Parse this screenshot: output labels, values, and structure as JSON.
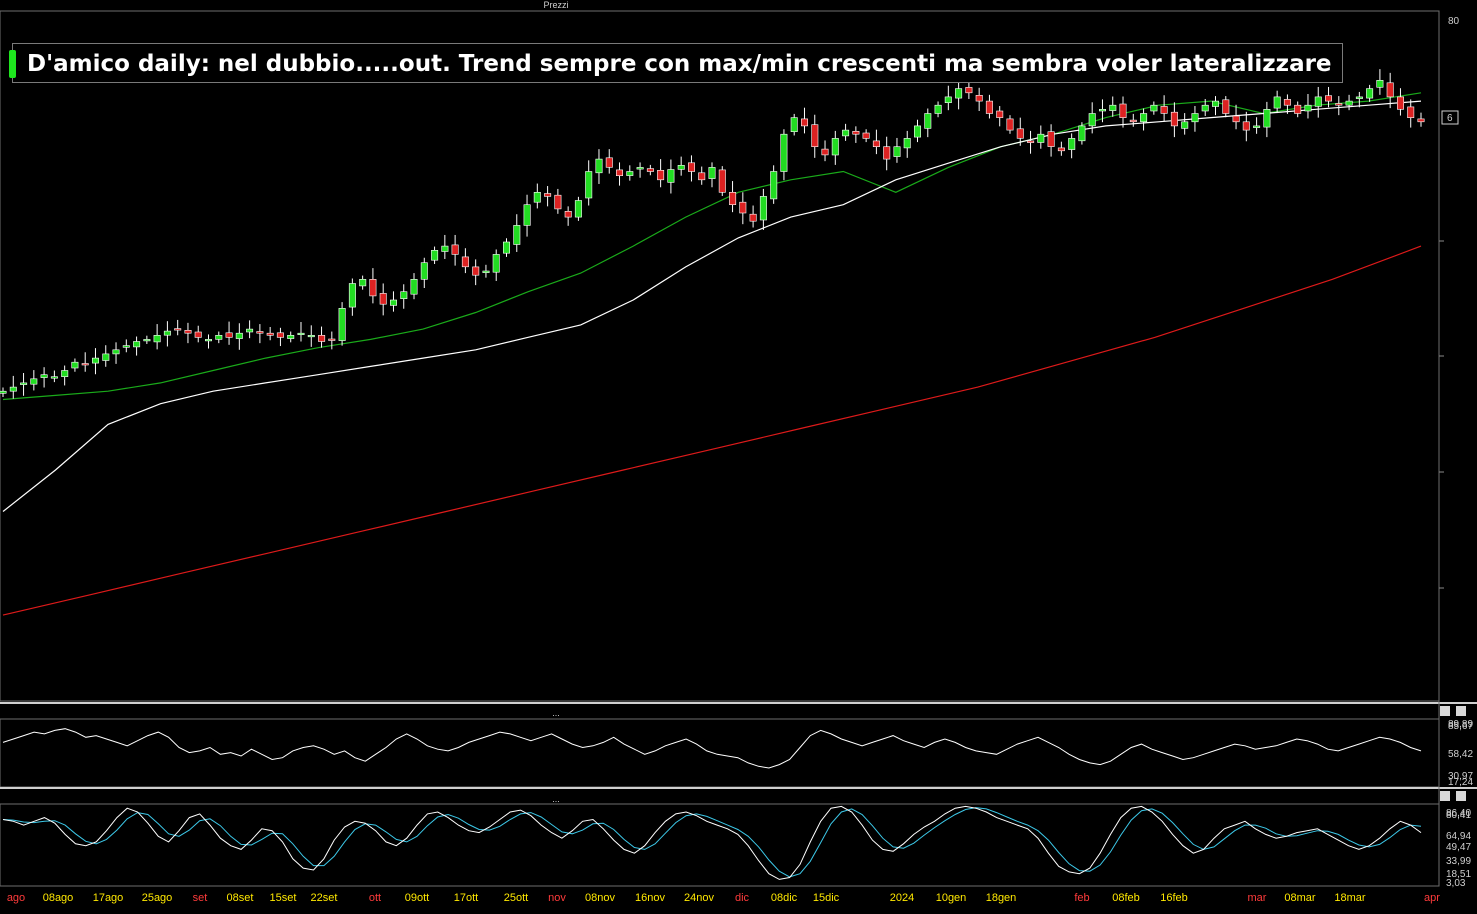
{
  "panels": {
    "price_title": "Prezzi",
    "osc1_title": "...",
    "osc2_title": "..."
  },
  "annotation": {
    "text": "D'amico daily: nel dubbio.....out. Trend sempre con max/min crescenti ma sembra voler lateralizzare"
  },
  "colors": {
    "background": "#000000",
    "up_candle": "#22dd22",
    "down_candle": "#dd2222",
    "ma_fast": "#1aaa1a",
    "ma_mid": "#ffffff",
    "ma_slow": "#dd1a1a",
    "stoch_signal": "#3cc8e8",
    "month_label": "#ff3b3b",
    "date_label": "#ffe800"
  },
  "chart_data": [
    {
      "type": "candlestick",
      "panel": "Prezzi",
      "y_axis_labels": [
        "80",
        "6"
      ],
      "last_value_label": "6",
      "x_tick_labels": [
        {
          "label": "ago",
          "month": true
        },
        {
          "label": "08ago",
          "month": false
        },
        {
          "label": "17ago",
          "month": false
        },
        {
          "label": "25ago",
          "month": false
        },
        {
          "label": "set",
          "month": true
        },
        {
          "label": "08set",
          "month": false
        },
        {
          "label": "15set",
          "month": false
        },
        {
          "label": "22set",
          "month": false
        },
        {
          "label": "ott",
          "month": true
        },
        {
          "label": "09ott",
          "month": false
        },
        {
          "label": "17ott",
          "month": false
        },
        {
          "label": "25ott",
          "month": false
        },
        {
          "label": "nov",
          "month": true
        },
        {
          "label": "08nov",
          "month": false
        },
        {
          "label": "16nov",
          "month": false
        },
        {
          "label": "24nov",
          "month": false
        },
        {
          "label": "dic",
          "month": true
        },
        {
          "label": "08dic",
          "month": false
        },
        {
          "label": "15dic",
          "month": false
        },
        {
          "label": "2024",
          "month": false
        },
        {
          "label": "10gen",
          "month": false
        },
        {
          "label": "18gen",
          "month": false
        },
        {
          "label": "feb",
          "month": true
        },
        {
          "label": "08feb",
          "month": false
        },
        {
          "label": "16feb",
          "month": false
        },
        {
          "label": "mar",
          "month": true
        },
        {
          "label": "08mar",
          "month": false
        },
        {
          "label": "18mar",
          "month": false
        },
        {
          "label": "apr",
          "month": true
        }
      ],
      "series_close": [
        4.78,
        4.8,
        4.82,
        4.84,
        4.86,
        4.85,
        4.88,
        4.92,
        4.91,
        4.94,
        4.96,
        4.98,
        5.0,
        5.02,
        5.03,
        5.05,
        5.07,
        5.08,
        5.06,
        5.04,
        5.03,
        5.05,
        5.04,
        5.06,
        5.08,
        5.06,
        5.05,
        5.04,
        5.05,
        5.06,
        5.05,
        5.02,
        5.03,
        5.18,
        5.3,
        5.32,
        5.24,
        5.2,
        5.22,
        5.26,
        5.32,
        5.4,
        5.46,
        5.48,
        5.44,
        5.38,
        5.34,
        5.36,
        5.44,
        5.5,
        5.58,
        5.68,
        5.74,
        5.72,
        5.66,
        5.62,
        5.7,
        5.84,
        5.9,
        5.86,
        5.82,
        5.84,
        5.86,
        5.84,
        5.8,
        5.85,
        5.87,
        5.84,
        5.8,
        5.86,
        5.74,
        5.68,
        5.64,
        5.6,
        5.72,
        5.84,
        6.02,
        6.1,
        6.06,
        5.96,
        5.92,
        6.0,
        6.04,
        6.02,
        6.0,
        5.96,
        5.9,
        5.96,
        6.0,
        6.06,
        6.12,
        6.16,
        6.2,
        6.24,
        6.22,
        6.18,
        6.12,
        6.1,
        6.04,
        6.0,
        5.98,
        6.02,
        5.96,
        5.94,
        6.0,
        6.06,
        6.12,
        6.14,
        6.16,
        6.1,
        6.08,
        6.12,
        6.16,
        6.12,
        6.06,
        6.08,
        6.12,
        6.16,
        6.18,
        6.12,
        6.08,
        6.04,
        6.06,
        6.14,
        6.2,
        6.16,
        6.12,
        6.16,
        6.2,
        6.18,
        6.16,
        6.18,
        6.2,
        6.24,
        6.28,
        6.2,
        6.14,
        6.1,
        6.08
      ],
      "moving_averages": [
        {
          "color": "ma_fast",
          "values": [
            4.74,
            4.76,
            4.78,
            4.82,
            4.88,
            4.94,
            4.99,
            5.03,
            5.08,
            5.16,
            5.26,
            5.35,
            5.48,
            5.62,
            5.74,
            5.8,
            5.84,
            5.74,
            5.86,
            5.96,
            6.02,
            6.1,
            6.16,
            6.18,
            6.12,
            6.16,
            6.18,
            6.22
          ]
        },
        {
          "color": "ma_mid",
          "values": [
            4.2,
            4.4,
            4.62,
            4.72,
            4.78,
            4.82,
            4.86,
            4.9,
            4.94,
            4.98,
            5.04,
            5.1,
            5.22,
            5.38,
            5.52,
            5.62,
            5.68,
            5.8,
            5.88,
            5.96,
            6.02,
            6.06,
            6.08,
            6.1,
            6.12,
            6.14,
            6.16,
            6.18
          ]
        },
        {
          "color": "ma_slow",
          "values": [
            3.7,
            3.8,
            3.9,
            4.0,
            4.1,
            4.2,
            4.3,
            4.4,
            4.5,
            4.6,
            4.7,
            4.8,
            4.92,
            5.04,
            5.18,
            5.32,
            5.48
          ]
        }
      ]
    },
    {
      "type": "line",
      "panel": "oscillator-1",
      "y_axis_labels": [
        "89,89",
        "85,67",
        "58,42",
        "30,97",
        "17,24"
      ],
      "ylim": [
        17.24,
        89.89
      ],
      "values": [
        66,
        70,
        74,
        78,
        76,
        80,
        82,
        78,
        72,
        74,
        70,
        66,
        62,
        68,
        74,
        78,
        72,
        60,
        54,
        56,
        60,
        52,
        54,
        50,
        58,
        52,
        46,
        48,
        56,
        60,
        62,
        58,
        52,
        56,
        48,
        44,
        52,
        60,
        70,
        76,
        70,
        62,
        58,
        56,
        60,
        66,
        70,
        74,
        78,
        76,
        72,
        68,
        72,
        76,
        70,
        64,
        60,
        62,
        66,
        72,
        64,
        58,
        52,
        56,
        62,
        66,
        70,
        64,
        56,
        52,
        50,
        48,
        42,
        38,
        36,
        40,
        46,
        60,
        74,
        80,
        76,
        70,
        66,
        62,
        66,
        70,
        74,
        68,
        64,
        60,
        66,
        70,
        66,
        60,
        56,
        54,
        52,
        58,
        64,
        68,
        72,
        66,
        60,
        52,
        46,
        42,
        40,
        44,
        52,
        60,
        64,
        58,
        54,
        50,
        46,
        48,
        52,
        56,
        60,
        64,
        62,
        58,
        60,
        62,
        66,
        70,
        68,
        64,
        58,
        56,
        60,
        64,
        68,
        72,
        70,
        66,
        60,
        56
      ]
    },
    {
      "type": "line",
      "panel": "oscillator-2",
      "y_axis_labels": [
        "86,40",
        "80,41",
        "64,94",
        "49,47",
        "33,99",
        "18,51",
        "3,03"
      ],
      "ylim": [
        3.03,
        86.4
      ],
      "series": [
        {
          "color": "ma_mid",
          "values": [
            72,
            70,
            66,
            70,
            74,
            68,
            56,
            46,
            44,
            48,
            60,
            74,
            84,
            80,
            68,
            54,
            48,
            60,
            74,
            78,
            66,
            52,
            44,
            40,
            50,
            62,
            60,
            48,
            30,
            20,
            18,
            30,
            50,
            64,
            70,
            68,
            60,
            48,
            44,
            52,
            66,
            78,
            80,
            74,
            66,
            60,
            58,
            64,
            72,
            80,
            82,
            76,
            66,
            58,
            52,
            60,
            70,
            72,
            62,
            50,
            40,
            36,
            44,
            58,
            70,
            78,
            80,
            76,
            70,
            66,
            62,
            56,
            44,
            28,
            14,
            8,
            10,
            24,
            48,
            70,
            84,
            86,
            80,
            66,
            50,
            40,
            38,
            46,
            56,
            64,
            70,
            78,
            84,
            86,
            84,
            80,
            74,
            70,
            66,
            62,
            52,
            36,
            22,
            16,
            14,
            20,
            36,
            56,
            74,
            84,
            86,
            80,
            70,
            56,
            44,
            36,
            40,
            52,
            62,
            66,
            70,
            62,
            56,
            52,
            54,
            58,
            60,
            62,
            56,
            50,
            44,
            40,
            44,
            52,
            62,
            70,
            66,
            58
          ]
        }
      ]
    }
  ]
}
